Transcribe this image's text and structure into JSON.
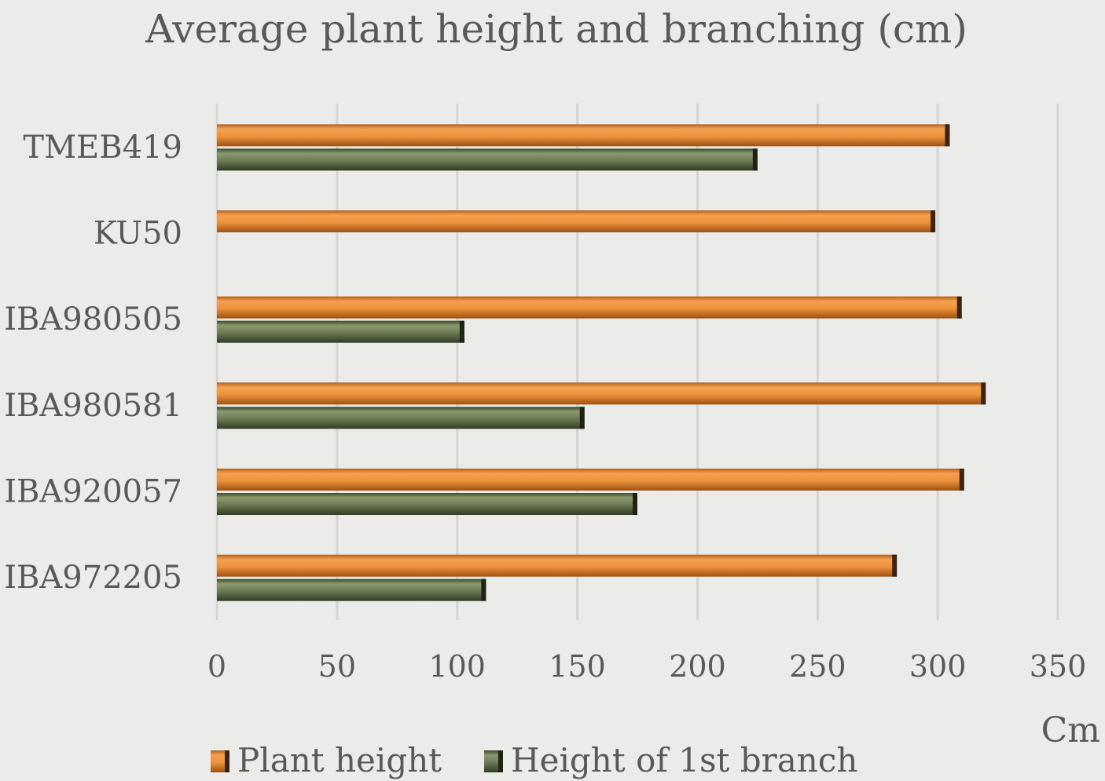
{
  "chart_data": {
    "type": "bar",
    "orientation": "horizontal",
    "title": "Average plant height and branching (cm)",
    "xlabel": "Cm",
    "ylabel": "",
    "xlim": [
      0,
      350
    ],
    "x_ticks": [
      0,
      50,
      100,
      150,
      200,
      250,
      300,
      350
    ],
    "grid": true,
    "legend": "bottom",
    "categories": [
      "TMEB419",
      "KU50",
      "IBA980505",
      "IBA980581",
      "IBA920057",
      "IBA972205"
    ],
    "series": [
      {
        "name": "Plant height",
        "color": "#ed923b",
        "values": [
          305,
          299,
          310,
          320,
          311,
          283
        ]
      },
      {
        "name": "Height of 1st branch",
        "color": "#6c7a55",
        "values": [
          225,
          null,
          103,
          153,
          175,
          112
        ]
      }
    ]
  }
}
